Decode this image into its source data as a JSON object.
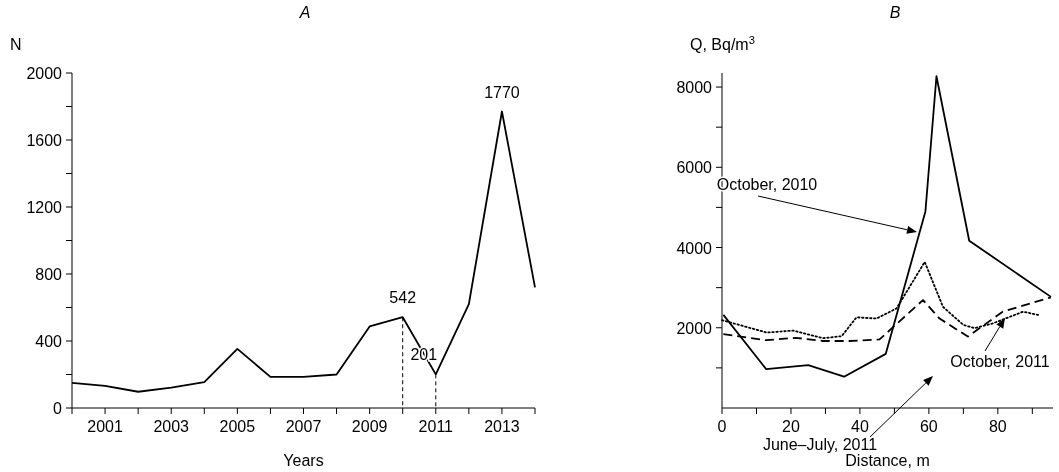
{
  "chart_data": [
    {
      "type": "line",
      "title": "A",
      "xlabel": "Years",
      "ylabel": "N",
      "x": [
        2000,
        2001,
        2002,
        2003,
        2004,
        2005,
        2006,
        2007,
        2008,
        2009,
        2010,
        2011,
        2012,
        2013,
        2014
      ],
      "series": [
        {
          "color": "#000000",
          "values": [
            150,
            132,
            97,
            122,
            155,
            353,
            186,
            186,
            200,
            487,
            542,
            201,
            620,
            1770,
            720
          ]
        }
      ],
      "xlim": [
        2000,
        2014
      ],
      "xticks": [
        {
          "value": 2000,
          "label": null
        },
        2001,
        {
          "value": 2002,
          "label": null
        },
        2003,
        {
          "value": 2004,
          "label": null
        },
        2005,
        {
          "value": 2006,
          "label": null
        },
        2007,
        {
          "value": 2008,
          "label": null
        },
        2009,
        {
          "value": 2010,
          "label": null
        },
        2011,
        {
          "value": 2012,
          "label": null
        },
        2013,
        {
          "value": 2014,
          "label": null
        }
      ],
      "ylim": [
        0,
        2000
      ],
      "yticks": [
        0,
        {
          "value": 200,
          "label": null
        },
        400,
        {
          "value": 600,
          "label": null
        },
        800,
        {
          "value": 1000,
          "label": null
        },
        1200,
        {
          "value": 1400,
          "label": null
        },
        1600,
        {
          "value": 1800,
          "label": null
        },
        2000
      ],
      "annotations": [
        {
          "text": "542",
          "x": 2010,
          "y": 542
        },
        {
          "text": "201",
          "x": 2011,
          "y": 201
        },
        {
          "text": "1770",
          "x": 2013,
          "y": 1770
        }
      ],
      "grid": false,
      "marker": "none",
      "line_style": "solid"
    },
    {
      "type": "line",
      "title": "B",
      "xlabel": "Distance, m",
      "ylabel": "Q, Bq/m$^{3}$",
      "series": [
        {
          "color": "#000000",
          "line_style": "solid",
          "x": [
            0.4,
            12.8,
            25,
            35.4,
            47.5,
            59,
            62.2,
            71.7,
            95.4
          ],
          "values": [
            2320,
            970,
            1070,
            780,
            1350,
            4900,
            8270,
            4170,
            2770
          ]
        },
        {
          "color": "#000000",
          "line_style": "dotted",
          "x": [
            0,
            13,
            20.6,
            29.3,
            34.7,
            39,
            44.8,
            50.6,
            58.8,
            64.1,
            70,
            73.3,
            78.6,
            87.3,
            91.7
          ],
          "values": [
            2190,
            1880,
            1930,
            1740,
            1790,
            2260,
            2230,
            2480,
            3640,
            2520,
            2070,
            1990,
            2110,
            2400,
            2320
          ]
        },
        {
          "color": "#000000",
          "line_style": "dashed",
          "x": [
            0.4,
            12.8,
            21.4,
            29.3,
            37,
            45.7,
            58.3,
            63.1,
            71.3,
            81.4,
            95.4
          ],
          "values": [
            1840,
            1690,
            1750,
            1670,
            1670,
            1710,
            2690,
            2230,
            1780,
            2400,
            2760
          ]
        }
      ],
      "xlim": [
        0,
        96
      ],
      "xticks": [
        0,
        {
          "value": 10,
          "label": null
        },
        20,
        {
          "value": 30,
          "label": null
        },
        40,
        {
          "value": 50,
          "label": null
        },
        60,
        {
          "value": 70,
          "label": null
        },
        80,
        {
          "value": 90,
          "label": null
        }
      ],
      "ylim": [
        0,
        8350
      ],
      "yticks": [
        {
          "value": 1000,
          "label": null
        },
        2000,
        {
          "value": 3000,
          "label": null
        },
        4000,
        {
          "value": 5000,
          "label": null
        },
        6000,
        {
          "value": 7000,
          "label": null
        },
        8000
      ],
      "annotations": [
        "October, 2010",
        "June–July, 2011",
        "October, 2011"
      ],
      "grid": false,
      "marker": "none"
    }
  ]
}
